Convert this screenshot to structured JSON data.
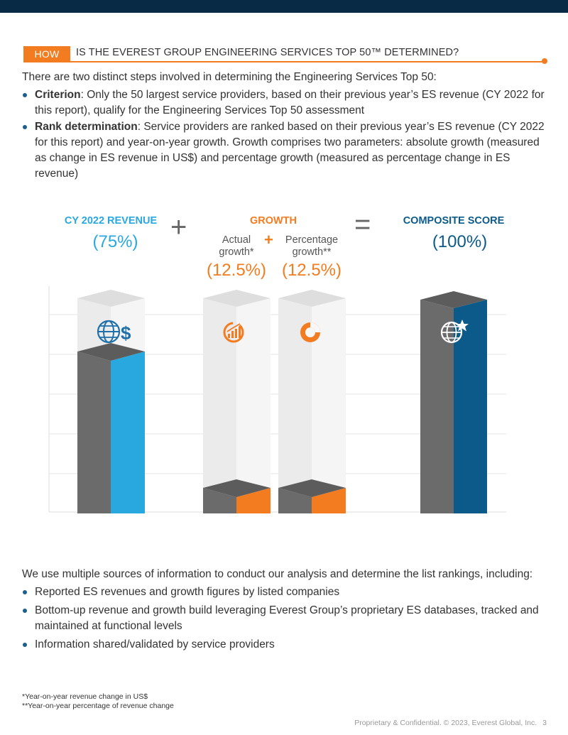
{
  "header": {
    "tag": "HOW",
    "title": "IS THE EVEREST GROUP ENGINEERING SERVICES TOP 50™ DETERMINED?"
  },
  "intro": "There are two distinct steps involved in determining the Engineering Services Top 50:",
  "steps": [
    {
      "term": "Criterion",
      "text": ": Only the 50 largest service providers, based on their previous year’s ES revenue (CY 2022 for this report), qualify for the Engineering Services Top 50 assessment"
    },
    {
      "term": "Rank determination",
      "text": ": Service providers are ranked based on their previous year’s ES revenue (CY 2022 for this report) and year-on-year growth. Growth comprises two parameters: absolute growth (measured as change in ES revenue in US$) and percentage growth (measured as percentage change in ES revenue)"
    }
  ],
  "chart": {
    "revenue_label": "CY 2022 REVENUE",
    "revenue_pct": "(75%)",
    "growth_label": "GROWTH",
    "actual_label_1": "Actual",
    "actual_label_2": "growth*",
    "actual_pct": "(12.5%)",
    "percentage_label_1": "Percentage",
    "percentage_label_2": "growth**",
    "percentage_pct": "(12.5%)",
    "composite_label": "COMPOSITE SCORE",
    "composite_pct": "(100%)",
    "plus": "+",
    "equals": "=",
    "colors": {
      "blue": "#29a8e0",
      "orange": "#f47c20",
      "navy": "#0b5a8a",
      "grey": "#6b6b6b"
    },
    "icons": [
      "globe-dollar-icon",
      "growth-chart-icon",
      "pie-chart-icon",
      "globe-star-icon"
    ]
  },
  "sources_intro": "We use multiple sources of information to conduct our analysis and determine the list rankings, including:",
  "sources": [
    "Reported ES revenues and growth figures by listed companies",
    "Bottom-up revenue and growth build leveraging Everest Group’s proprietary ES databases, tracked and maintained at functional levels",
    "Information shared/validated by service providers"
  ],
  "footnotes": [
    "*Year-on-year revenue change in US$",
    "**Year-on-year percentage of revenue change"
  ],
  "footer": {
    "text": "Proprietary & Confidential. © 2023, Everest Global, Inc.",
    "page": "3"
  }
}
